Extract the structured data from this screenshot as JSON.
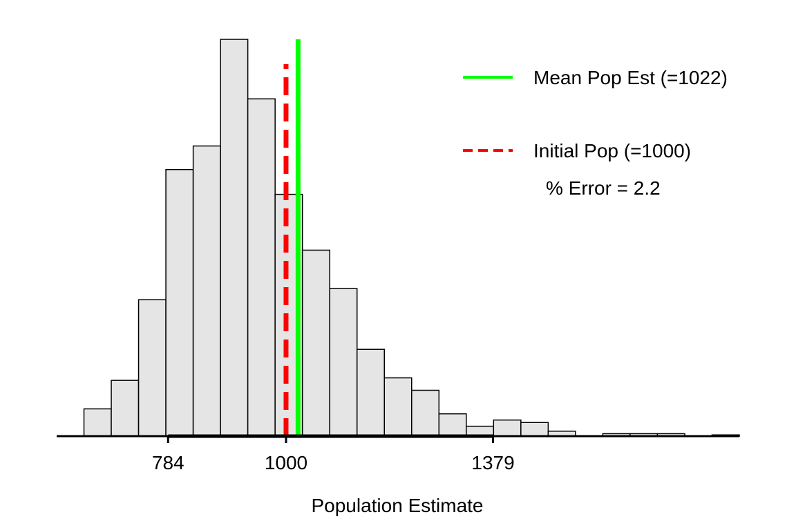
{
  "chart_data": {
    "type": "bar",
    "title": "",
    "xlabel": "Population Estimate",
    "ylabel": "",
    "grid": false,
    "legend_placement": "top-right",
    "colors": {
      "bar_fill": "#e5e5e5",
      "bar_stroke": "#000000",
      "mean_line": "#00ff00",
      "initial_line": "#ff0000"
    },
    "bins": [
      {
        "x0": 580,
        "x1": 630,
        "count": 0
      },
      {
        "x0": 630,
        "x1": 680,
        "count": 22
      },
      {
        "x0": 680,
        "x1": 730,
        "count": 45
      },
      {
        "x0": 730,
        "x1": 780,
        "count": 110
      },
      {
        "x0": 780,
        "x1": 830,
        "count": 215
      },
      {
        "x0": 830,
        "x1": 880,
        "count": 234
      },
      {
        "x0": 880,
        "x1": 930,
        "count": 320
      },
      {
        "x0": 930,
        "x1": 980,
        "count": 272
      },
      {
        "x0": 980,
        "x1": 1030,
        "count": 195
      },
      {
        "x0": 1030,
        "x1": 1080,
        "count": 150
      },
      {
        "x0": 1080,
        "x1": 1130,
        "count": 119
      },
      {
        "x0": 1130,
        "x1": 1180,
        "count": 70
      },
      {
        "x0": 1180,
        "x1": 1230,
        "count": 47
      },
      {
        "x0": 1230,
        "x1": 1280,
        "count": 37
      },
      {
        "x0": 1280,
        "x1": 1330,
        "count": 18
      },
      {
        "x0": 1330,
        "x1": 1380,
        "count": 8
      },
      {
        "x0": 1380,
        "x1": 1430,
        "count": 13
      },
      {
        "x0": 1430,
        "x1": 1480,
        "count": 11
      },
      {
        "x0": 1480,
        "x1": 1530,
        "count": 4
      },
      {
        "x0": 1530,
        "x1": 1580,
        "count": 0
      },
      {
        "x0": 1580,
        "x1": 1630,
        "count": 2
      },
      {
        "x0": 1630,
        "x1": 1680,
        "count": 2
      },
      {
        "x0": 1680,
        "x1": 1730,
        "count": 2
      },
      {
        "x0": 1730,
        "x1": 1780,
        "count": 0
      },
      {
        "x0": 1780,
        "x1": 1830,
        "count": 1
      }
    ],
    "xlim": [
      580,
      1830
    ],
    "ylim": [
      0,
      320
    ],
    "x_ticks": [
      784,
      1000,
      1379
    ],
    "x_tick_labels": [
      "784",
      "1000",
      "1379"
    ],
    "mean_pop_est": 1022,
    "initial_pop": 1000,
    "legend": [
      {
        "label": "Mean Pop Est (=1022)",
        "style": "solid",
        "color": "#00ff00"
      },
      {
        "label": "Initial Pop (=1000)",
        "style": "dashed",
        "color": "#ff0000"
      }
    ],
    "annotation": "% Error = 2.2"
  }
}
